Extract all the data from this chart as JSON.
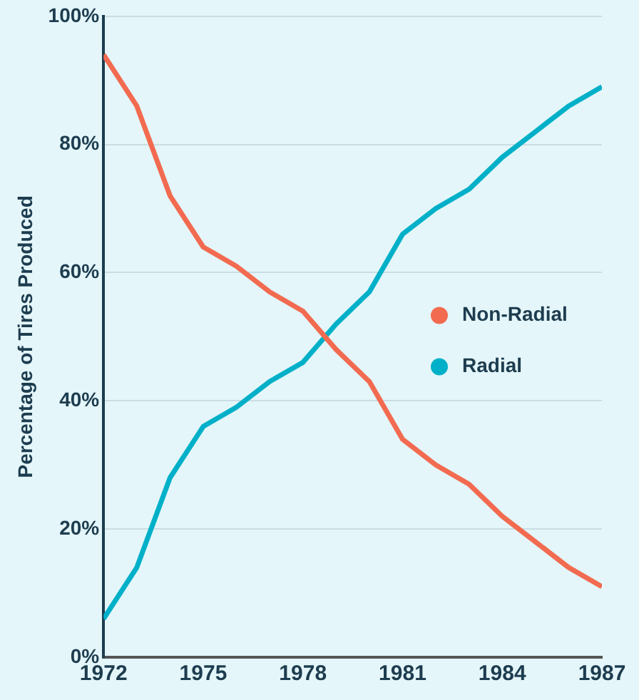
{
  "chart_data": {
    "type": "line",
    "ylabel": "Percentage of Tires Produced",
    "x": [
      1972,
      1973,
      1974,
      1975,
      1976,
      1977,
      1978,
      1979,
      1980,
      1981,
      1982,
      1983,
      1984,
      1985,
      1986,
      1987
    ],
    "series": [
      {
        "name": "Non-Radial",
        "color": "#f26b50",
        "values": [
          94,
          86,
          72,
          64,
          61,
          57,
          54,
          48,
          43,
          34,
          30,
          27,
          22,
          18,
          14,
          11
        ]
      },
      {
        "name": "Radial",
        "color": "#00b0c8",
        "values": [
          6,
          14,
          28,
          36,
          39,
          43,
          46,
          52,
          57,
          66,
          70,
          73,
          78,
          82,
          86,
          89
        ]
      }
    ],
    "xlim": [
      1972,
      1987
    ],
    "xticks": [
      1972,
      1975,
      1978,
      1981,
      1984,
      1987
    ],
    "ylim": [
      0,
      100
    ],
    "yticks": [
      {
        "value": 0,
        "label": "0%"
      },
      {
        "value": 20,
        "label": "20%"
      },
      {
        "value": 40,
        "label": "40%"
      },
      {
        "value": 60,
        "label": "60%"
      },
      {
        "value": 80,
        "label": "80%"
      },
      {
        "value": 100,
        "label": "100%"
      }
    ],
    "grid": "y",
    "legend": "right",
    "marker": "none",
    "line_style": "solid"
  }
}
